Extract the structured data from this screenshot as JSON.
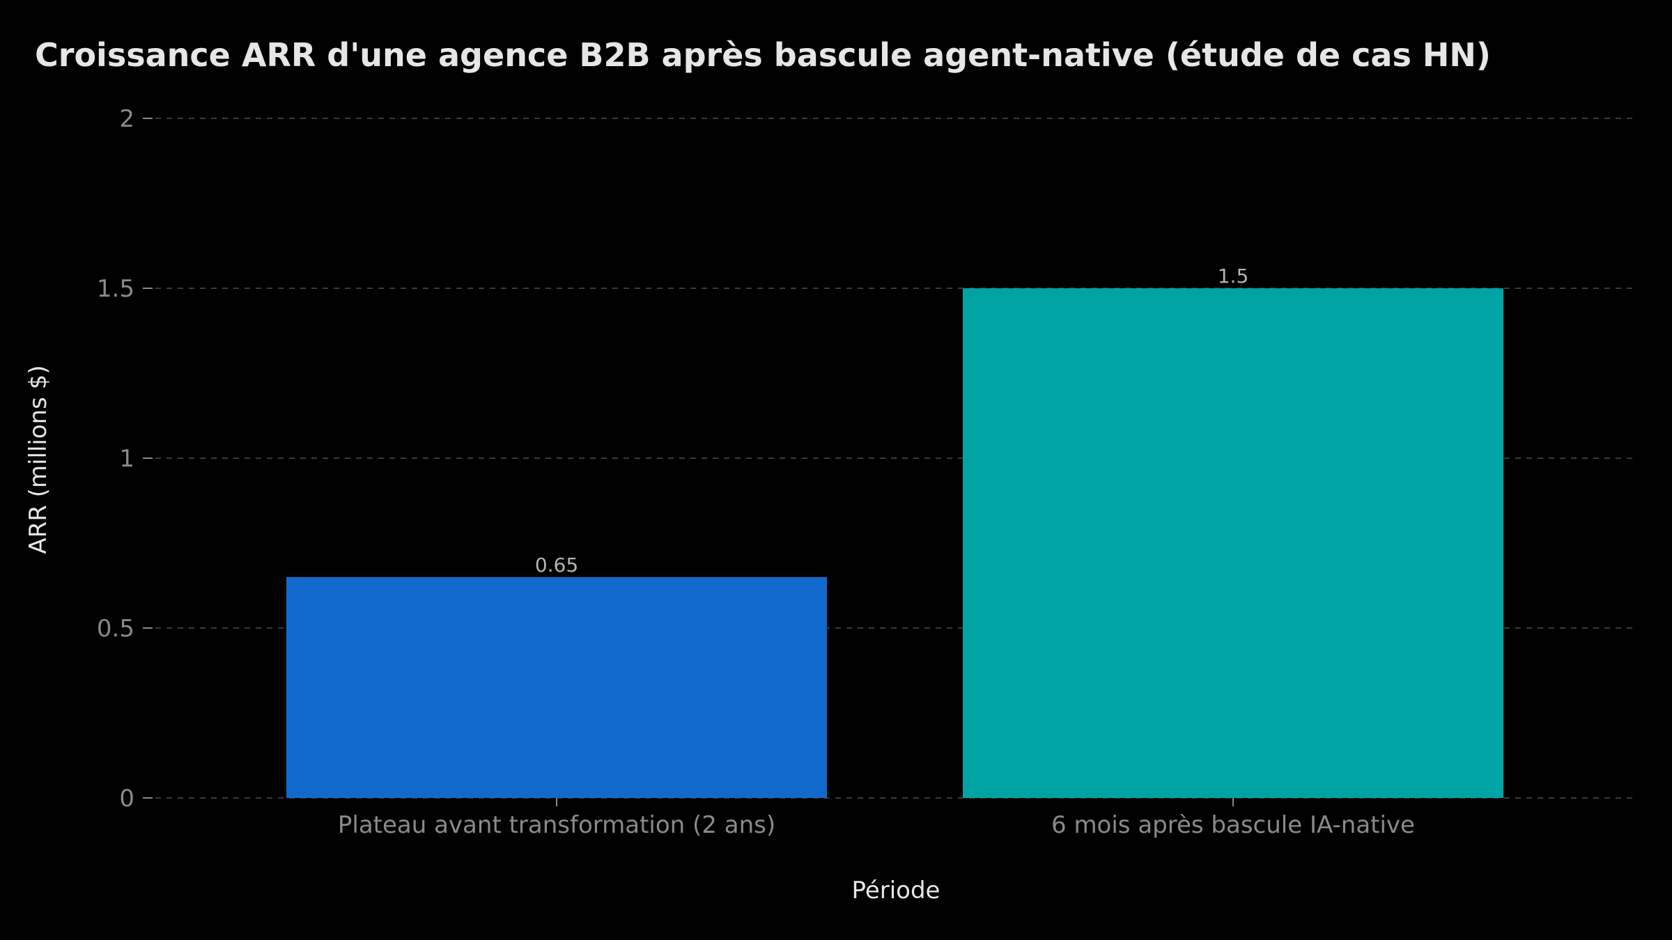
{
  "chart_data": {
    "type": "bar",
    "title": "Croissance ARR d'une agence B2B après bascule agent-native (étude de cas HN)",
    "xlabel": "Période",
    "ylabel": "ARR (millions $)",
    "categories": [
      "Plateau avant transformation (2 ans)",
      "6 mois après bascule IA-native"
    ],
    "values": [
      0.65,
      1.5
    ],
    "data_labels": [
      "0.65",
      "1.5"
    ],
    "ylim": [
      0,
      2
    ],
    "yticks": [
      0,
      0.5,
      1,
      1.5,
      2
    ],
    "ytick_labels": [
      "0",
      "0.5",
      "1",
      "1.5",
      "2"
    ],
    "grid": true,
    "colors": [
      "#1269CC",
      "#00A3A3"
    ],
    "background": "#000000"
  }
}
